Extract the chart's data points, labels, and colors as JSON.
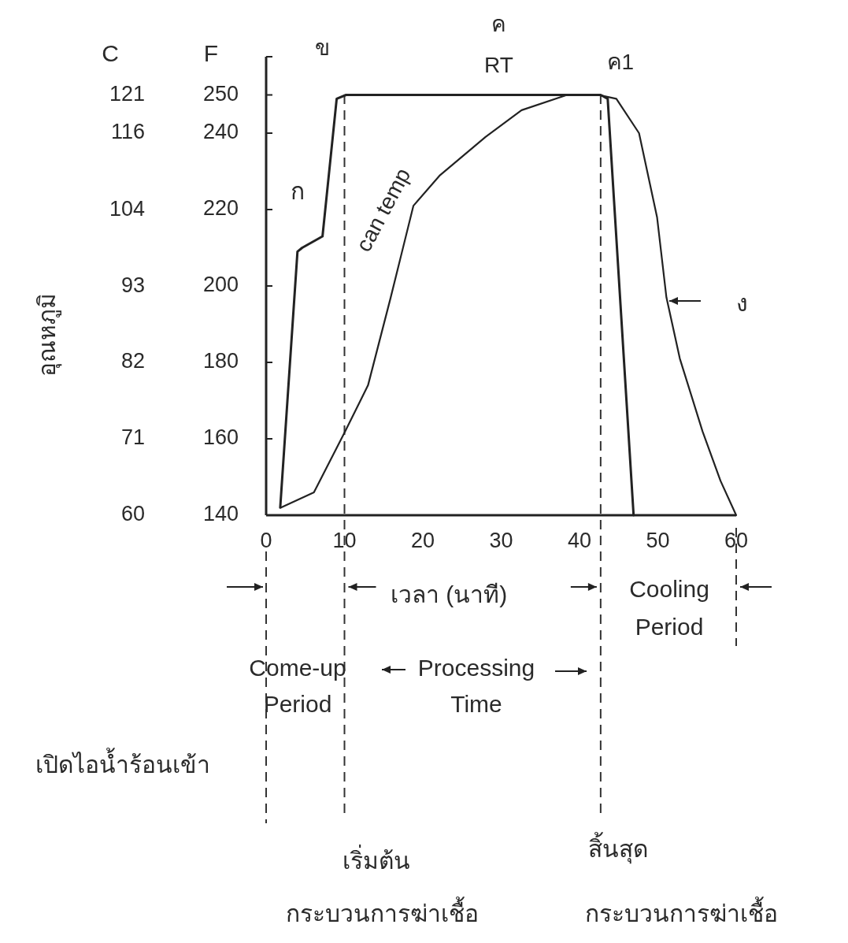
{
  "chart_data": {
    "type": "line",
    "xlabel": "เวลา (นาที)",
    "y2label": "อุณหภูมิ",
    "xlim": [
      0,
      60
    ],
    "xticks": [
      0,
      10,
      20,
      30,
      40,
      50,
      60
    ],
    "ylim": [
      140,
      260
    ],
    "yticks": [
      140,
      160,
      180,
      200,
      220,
      240,
      250
    ],
    "y2lim": [
      60,
      126.7
    ],
    "y2ticks": [
      {
        "value": 60,
        "label": "60"
      },
      {
        "value": 71.1,
        "label": "71"
      },
      {
        "value": 82.2,
        "label": "82"
      },
      {
        "value": 93.3,
        "label": "93"
      },
      {
        "value": 104.4,
        "label": "104"
      },
      {
        "value": 115.6,
        "label": "116"
      },
      {
        "value": 121.1,
        "label": "121"
      }
    ],
    "series": [
      {
        "name": "RT",
        "color": "#222222",
        "x": [
          1.8,
          4,
          4.6,
          7.2,
          9,
          10.2,
          42.7,
          43.6,
          46.9
        ],
        "values": [
          142,
          209,
          210,
          213,
          249,
          250,
          250,
          249,
          140
        ]
      },
      {
        "name": "can temp",
        "color": "#222222",
        "x": [
          1.9,
          6.1,
          10.1,
          13,
          15.9,
          18.8,
          22.2,
          28,
          32.6,
          38.4,
          42.4,
          44.7,
          47.6,
          49.9,
          51.1,
          52.8,
          55.7,
          58,
          60
        ],
        "values": [
          142,
          146,
          162,
          174,
          197,
          221,
          229,
          239,
          246,
          250,
          250,
          249,
          240,
          218,
          197,
          181,
          162,
          149,
          140
        ]
      }
    ],
    "ref_lines": [
      {
        "axis": "x",
        "value": 10,
        "line_style": "dashed",
        "color": "#333333"
      },
      {
        "axis": "x",
        "value": 42.7,
        "line_style": "dashed",
        "color": "#333333"
      }
    ],
    "annotations": [
      "C",
      "F",
      "ก",
      {
        "text": "ข",
        "x": 10,
        "y": 250
      },
      {
        "text": "ค",
        "x": 29.7,
        "y": 250
      },
      {
        "text": "ค1",
        "x": 43,
        "y": 250
      },
      "ง",
      "Cooling Period",
      "Come-up Period",
      "Processing Time",
      "เปิดไอน้ำร้อนเข้า",
      "เริ่มต้น กระบวนการฆ่าเชื้อ",
      "สิ้นสุด กระบวนการฆ่าเชื้อ"
    ]
  }
}
